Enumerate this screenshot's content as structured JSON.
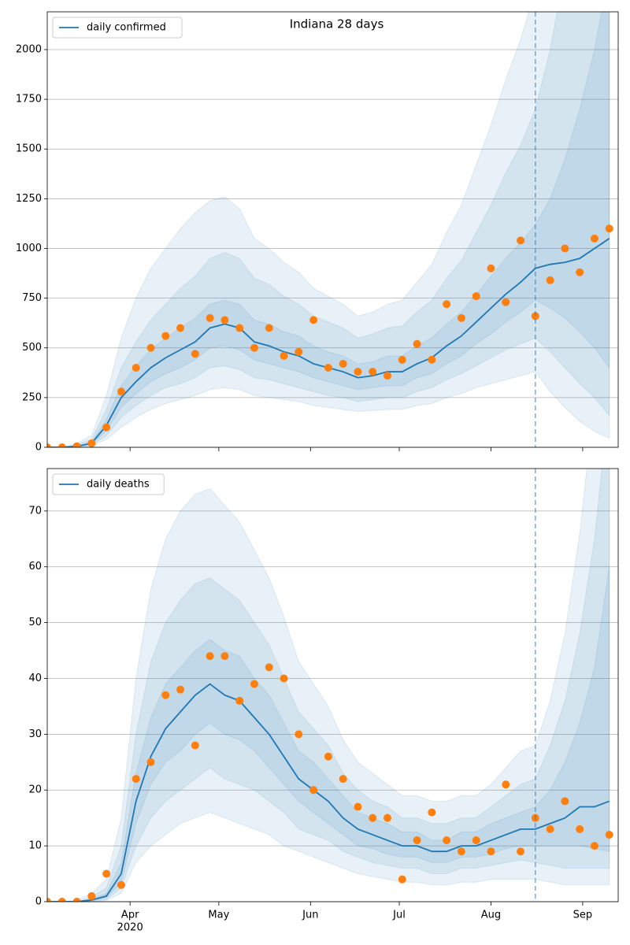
{
  "chart_data": [
    {
      "type": "line",
      "title": "Indiana 28 days",
      "legend": "upper left",
      "grid": true,
      "xlim": [
        "2020-03-04",
        "2020-09-13"
      ],
      "ylim": [
        0,
        2190
      ],
      "yticks": [
        0,
        250,
        500,
        750,
        1000,
        1250,
        1500,
        1750,
        2000
      ],
      "xticks": [
        "2020-04-01",
        "2020-05-01",
        "2020-06-01",
        "2020-07-01",
        "2020-08-01",
        "2020-09-01"
      ],
      "forecast_start": "2020-08-16",
      "x": [
        "2020-03-04",
        "2020-03-09",
        "2020-03-14",
        "2020-03-19",
        "2020-03-24",
        "2020-03-29",
        "2020-04-03",
        "2020-04-08",
        "2020-04-13",
        "2020-04-18",
        "2020-04-23",
        "2020-04-28",
        "2020-05-03",
        "2020-05-08",
        "2020-05-13",
        "2020-05-18",
        "2020-05-23",
        "2020-05-28",
        "2020-06-02",
        "2020-06-07",
        "2020-06-12",
        "2020-06-17",
        "2020-06-22",
        "2020-06-27",
        "2020-07-02",
        "2020-07-07",
        "2020-07-12",
        "2020-07-17",
        "2020-07-22",
        "2020-07-27",
        "2020-08-01",
        "2020-08-06",
        "2020-08-11",
        "2020-08-16",
        "2020-08-21",
        "2020-08-26",
        "2020-08-31",
        "2020-09-05",
        "2020-09-10"
      ],
      "series": [
        {
          "name": "daily confirmed",
          "color": "#1f77b4",
          "values": [
            0,
            0,
            5,
            20,
            110,
            250,
            330,
            400,
            450,
            490,
            530,
            600,
            620,
            600,
            530,
            510,
            480,
            460,
            420,
            400,
            380,
            350,
            360,
            380,
            380,
            420,
            450,
            510,
            560,
            630,
            700,
            770,
            830,
            900,
            920,
            930,
            950,
            1000,
            1050
          ]
        }
      ],
      "observed": {
        "color": "#ff7f0e",
        "values": [
          0,
          0,
          5,
          20,
          100,
          280,
          400,
          500,
          560,
          600,
          470,
          650,
          640,
          600,
          500,
          600,
          460,
          480,
          640,
          400,
          420,
          380,
          380,
          360,
          440,
          520,
          440,
          720,
          650,
          760,
          900,
          730,
          1040,
          660,
          840,
          1000,
          880,
          1050,
          1100
        ]
      },
      "band_color": "#1f77b4",
      "bands": [
        {
          "lower": [
            0,
            0,
            1,
            5,
            40,
            100,
            150,
            190,
            220,
            240,
            260,
            290,
            300,
            290,
            260,
            250,
            240,
            230,
            210,
            200,
            190,
            180,
            185,
            190,
            190,
            210,
            220,
            250,
            270,
            300,
            320,
            340,
            360,
            380,
            280,
            200,
            130,
            80,
            45
          ],
          "upper": [
            0,
            0,
            20,
            60,
            260,
            550,
            750,
            900,
            1000,
            1100,
            1180,
            1240,
            1260,
            1200,
            1050,
            1000,
            930,
            880,
            800,
            760,
            720,
            660,
            680,
            720,
            740,
            830,
            920,
            1080,
            1220,
            1420,
            1620,
            1850,
            2050,
            2300,
            2700,
            3200,
            3800,
            4500,
            5200
          ]
        },
        {
          "lower": [
            0,
            0,
            2,
            10,
            60,
            150,
            210,
            260,
            300,
            320,
            350,
            400,
            410,
            390,
            350,
            340,
            320,
            300,
            280,
            260,
            250,
            230,
            240,
            250,
            250,
            280,
            300,
            340,
            370,
            410,
            450,
            490,
            520,
            550,
            480,
            400,
            320,
            250,
            160
          ],
          "upper": [
            0,
            0,
            12,
            40,
            190,
            400,
            530,
            640,
            720,
            800,
            860,
            950,
            980,
            950,
            850,
            820,
            760,
            720,
            660,
            630,
            600,
            550,
            570,
            600,
            610,
            680,
            740,
            850,
            940,
            1080,
            1220,
            1380,
            1520,
            1700,
            2000,
            2400,
            2900,
            3400,
            4000
          ]
        },
        {
          "lower": [
            0,
            0,
            3,
            15,
            85,
            200,
            270,
            330,
            370,
            400,
            440,
            500,
            510,
            490,
            440,
            420,
            400,
            380,
            350,
            330,
            310,
            290,
            300,
            310,
            310,
            350,
            370,
            420,
            460,
            520,
            570,
            630,
            680,
            740,
            700,
            650,
            580,
            500,
            400
          ],
          "upper": [
            0,
            0,
            8,
            28,
            140,
            310,
            410,
            490,
            550,
            600,
            650,
            720,
            740,
            720,
            640,
            620,
            580,
            560,
            510,
            480,
            460,
            420,
            430,
            460,
            460,
            510,
            550,
            620,
            680,
            770,
            860,
            950,
            1030,
            1120,
            1250,
            1450,
            1700,
            2000,
            2400
          ]
        }
      ]
    },
    {
      "type": "line",
      "legend": "upper left",
      "grid": true,
      "xlim": [
        "2020-03-04",
        "2020-09-13"
      ],
      "ylim": [
        0,
        77.6
      ],
      "yticks": [
        0,
        10,
        20,
        30,
        40,
        50,
        60,
        70
      ],
      "xticks": [
        {
          "value": "2020-04-01",
          "label": "Apr"
        },
        {
          "value": "2020-05-01",
          "label": "May"
        },
        {
          "value": "2020-06-01",
          "label": "Jun"
        },
        {
          "value": "2020-07-01",
          "label": "Jul"
        },
        {
          "value": "2020-08-01",
          "label": "Aug"
        },
        {
          "value": "2020-09-01",
          "label": "Sep"
        }
      ],
      "x_offset_label": "2020",
      "forecast_start": "2020-08-16",
      "x": [
        "2020-03-04",
        "2020-03-09",
        "2020-03-14",
        "2020-03-19",
        "2020-03-24",
        "2020-03-29",
        "2020-04-03",
        "2020-04-08",
        "2020-04-13",
        "2020-04-18",
        "2020-04-23",
        "2020-04-28",
        "2020-05-03",
        "2020-05-08",
        "2020-05-13",
        "2020-05-18",
        "2020-05-23",
        "2020-05-28",
        "2020-06-02",
        "2020-06-07",
        "2020-06-12",
        "2020-06-17",
        "2020-06-22",
        "2020-06-27",
        "2020-07-02",
        "2020-07-07",
        "2020-07-12",
        "2020-07-17",
        "2020-07-22",
        "2020-07-27",
        "2020-08-01",
        "2020-08-06",
        "2020-08-11",
        "2020-08-16",
        "2020-08-21",
        "2020-08-26",
        "2020-08-31",
        "2020-09-05",
        "2020-09-10"
      ],
      "series": [
        {
          "name": "daily deaths",
          "color": "#1f77b4",
          "values": [
            0,
            0,
            0,
            0.3,
            1,
            5,
            18,
            26,
            31,
            34,
            37,
            39,
            37,
            36,
            33,
            30,
            26,
            22,
            20,
            18,
            15,
            13,
            12,
            11,
            10,
            10,
            9,
            9,
            10,
            10,
            11,
            12,
            13,
            13,
            14,
            15,
            17,
            17,
            18
          ]
        }
      ],
      "observed": {
        "color": "#ff7f0e",
        "values": [
          0,
          0,
          0,
          1,
          5,
          3,
          22,
          25,
          37,
          38,
          28,
          44,
          44,
          36,
          39,
          42,
          40,
          30,
          20,
          26,
          22,
          17,
          15,
          15,
          4,
          11,
          16,
          11,
          9,
          11,
          9,
          21,
          9,
          15,
          13,
          18,
          13,
          10,
          12
        ]
      },
      "band_color": "#1f77b4",
      "bands": [
        {
          "lower": [
            0,
            0,
            0,
            0,
            0.2,
            1.5,
            7,
            10,
            12,
            14,
            15,
            16,
            15,
            14,
            13,
            12,
            10,
            9,
            8,
            7,
            6,
            5,
            4.5,
            4,
            3.5,
            3.5,
            3,
            3,
            3.5,
            3.5,
            4,
            4,
            4,
            4,
            3.5,
            3,
            3,
            3,
            3
          ],
          "upper": [
            0,
            0,
            0.2,
            1.5,
            4,
            15,
            40,
            56,
            65,
            70,
            73,
            74,
            71,
            68,
            63,
            58,
            51,
            43,
            39,
            35,
            29,
            25,
            23,
            21,
            19,
            19,
            18,
            18,
            19,
            19,
            21,
            24,
            27,
            28,
            36,
            48,
            66,
            90,
            120
          ]
        },
        {
          "lower": [
            0,
            0,
            0,
            0.1,
            0.4,
            2.5,
            10,
            15,
            18,
            20,
            22,
            24,
            22,
            21,
            20,
            18,
            16,
            13,
            12,
            11,
            9,
            8,
            7,
            6.5,
            6,
            6,
            5,
            5,
            6,
            6,
            6.5,
            7,
            7.5,
            7,
            6.5,
            6,
            6,
            6,
            6
          ],
          "upper": [
            0,
            0,
            0,
            0.8,
            2.5,
            10,
            30,
            43,
            50,
            54,
            57,
            58,
            56,
            54,
            50,
            46,
            40,
            34,
            31,
            28,
            23,
            20,
            18,
            17,
            15,
            15,
            14,
            14,
            15,
            15,
            17,
            19,
            21,
            22,
            28,
            36,
            48,
            65,
            90
          ]
        },
        {
          "lower": [
            0,
            0,
            0,
            0.2,
            0.7,
            3.5,
            14,
            21,
            25,
            27,
            30,
            32,
            30,
            29,
            27,
            24,
            21,
            18,
            16,
            14,
            12,
            10,
            9.5,
            8.5,
            8,
            8,
            7,
            7,
            8,
            8,
            8.5,
            9.5,
            10,
            10,
            10,
            10,
            10,
            9.5,
            9
          ],
          "upper": [
            0,
            0,
            0,
            0.5,
            1.5,
            7,
            23,
            33,
            39,
            42,
            45,
            47,
            45,
            44,
            40,
            37,
            32,
            27,
            25,
            22,
            19,
            16,
            15,
            14,
            12.5,
            12.5,
            11,
            11,
            12.5,
            12.5,
            14,
            15,
            16,
            17,
            20,
            25,
            32,
            42,
            60
          ]
        }
      ]
    }
  ]
}
